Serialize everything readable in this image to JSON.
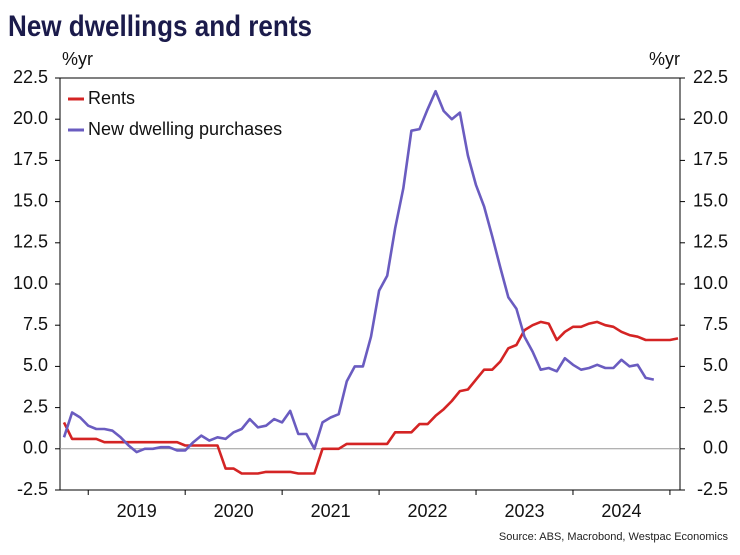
{
  "chart_data": {
    "type": "line",
    "title": "New dwellings and rents",
    "y_label": "%yr",
    "y2_label": "%yr",
    "source": "Source: ABS, Macrobond, Westpac Economics",
    "categories": [
      null,
      null,
      null,
      null,
      null,
      null,
      null,
      null,
      null,
      "2019",
      null,
      null,
      null,
      null,
      null,
      null,
      null,
      null,
      null,
      null,
      null,
      "2020",
      null,
      null,
      null,
      null,
      null,
      null,
      null,
      null,
      null,
      null,
      null,
      "2021",
      null,
      null,
      null,
      null,
      null,
      null,
      null,
      null,
      null,
      null,
      null,
      "2022",
      null,
      null,
      null,
      null,
      null,
      null,
      null,
      null,
      null,
      null,
      null,
      "2023",
      null,
      null,
      null,
      null,
      null,
      null,
      null,
      null,
      null,
      null,
      null,
      "2024",
      null,
      null,
      null,
      null,
      null,
      null,
      null
    ],
    "series": [
      {
        "name": "Rents",
        "color": "#d42424",
        "values": [
          1.6,
          0.6,
          0.6,
          0.6,
          0.6,
          0.4,
          0.4,
          0.4,
          0.4,
          0.4,
          0.4,
          0.4,
          0.4,
          0.4,
          0.4,
          0.2,
          0.2,
          0.2,
          0.2,
          0.2,
          -1.2,
          -1.2,
          -1.5,
          -1.5,
          -1.5,
          -1.4,
          -1.4,
          -1.4,
          -1.4,
          -1.5,
          -1.5,
          -1.5,
          0,
          0,
          0,
          0.3,
          0.3,
          0.3,
          0.3,
          0.3,
          0.3,
          1.0,
          1.0,
          1.0,
          1.5,
          1.5,
          2.0,
          2.4,
          2.9,
          3.5,
          3.6,
          4.2,
          4.8,
          4.8,
          5.3,
          6.1,
          6.3,
          7.2,
          7.5,
          7.7,
          7.6,
          6.6,
          7.1,
          7.4,
          7.4,
          7.6,
          7.7,
          7.5,
          7.4,
          7.1,
          6.9,
          6.8,
          6.6,
          6.6,
          6.6,
          6.6,
          6.7
        ]
      },
      {
        "name": "New dwelling purchases",
        "color": "#6a5cc0",
        "values": [
          0.7,
          2.2,
          1.9,
          1.4,
          1.2,
          1.2,
          1.1,
          0.7,
          0.2,
          -0.2,
          0.0,
          0.0,
          0.1,
          0.1,
          -0.1,
          -0.1,
          0.4,
          0.8,
          0.5,
          0.7,
          0.6,
          1.0,
          1.2,
          1.8,
          1.3,
          1.4,
          1.8,
          1.6,
          2.3,
          0.9,
          0.9,
          0.0,
          1.6,
          1.9,
          2.1,
          4.1,
          5.0,
          5.0,
          6.8,
          9.6,
          10.5,
          13.4,
          15.8,
          19.3,
          19.4,
          20.6,
          21.7,
          20.5,
          20.0,
          20.4,
          17.8,
          16.0,
          14.7,
          12.9,
          11.0,
          9.2,
          8.5,
          6.8,
          5.9,
          4.8,
          4.9,
          4.7,
          5.5,
          5.1,
          4.8,
          4.9,
          5.1,
          4.9,
          4.9,
          5.4,
          5.0,
          5.1,
          4.3,
          4.2,
          null,
          null,
          null
        ]
      }
    ],
    "ylim": [
      -2.5,
      22.5
    ],
    "yticks": [
      -2.5,
      {
        "value": 0,
        "label": "0.0"
      },
      2.5,
      {
        "value": 5,
        "label": "5.0"
      },
      7.5,
      {
        "value": 10,
        "label": "10.0"
      },
      12.5,
      {
        "value": 15,
        "label": "15.0"
      },
      17.5,
      {
        "value": 20,
        "label": "20.0"
      },
      22.5
    ],
    "y2lim": [
      -2.5,
      22.5
    ],
    "y2ticks": [
      -2.5,
      {
        "value": 0,
        "label": "0.0"
      },
      2.5,
      {
        "value": 5,
        "label": "5.0"
      },
      7.5,
      {
        "value": 10,
        "label": "10.0"
      },
      12.5,
      {
        "value": 15,
        "label": "15.0"
      },
      17.5,
      {
        "value": 20,
        "label": "20.0"
      },
      22.5
    ],
    "zero_line": true,
    "legend": "top-left"
  }
}
